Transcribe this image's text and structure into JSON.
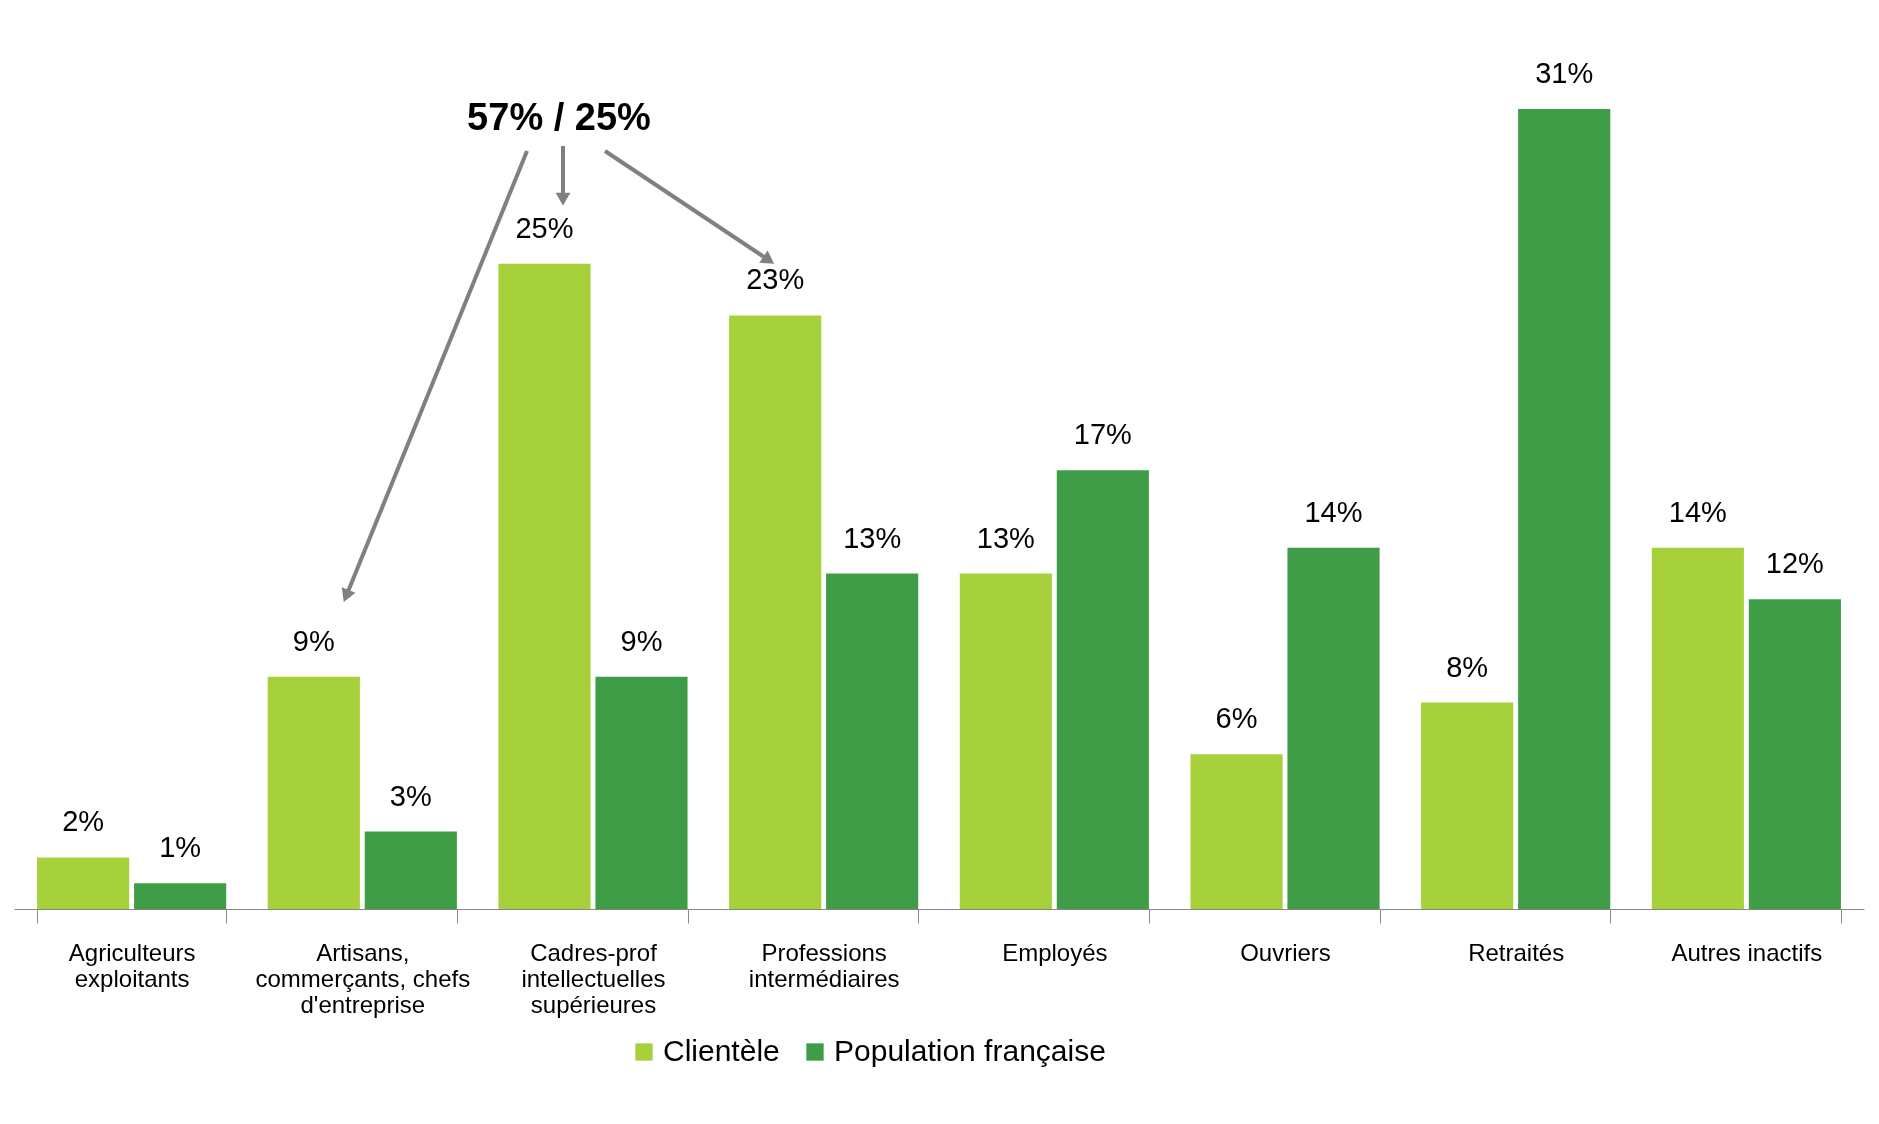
{
  "chart_data": {
    "type": "bar",
    "categories": [
      "Agriculteurs exploitants",
      "Artisans, commerçants, chefs d'entreprise",
      "Cadres-prof intellectuelles supérieures",
      "Professions intermédiaires",
      "Employés",
      "Ouvriers",
      "Retraités",
      "Autres inactifs"
    ],
    "series": [
      {
        "name": "Clientèle",
        "color": "#a6d13a",
        "values": [
          2,
          9,
          25,
          23,
          13,
          6,
          8,
          14
        ],
        "value_labels": [
          "2%",
          "9%",
          "25%",
          "23%",
          "13%",
          "6%",
          "8%",
          "14%"
        ]
      },
      {
        "name": "Population française",
        "color": "#3f9d47",
        "values": [
          1,
          3,
          9,
          13,
          17,
          14,
          31,
          12
        ],
        "value_labels": [
          "1%",
          "3%",
          "9%",
          "13%",
          "17%",
          "14%",
          "31%",
          "12%"
        ]
      }
    ],
    "annotations": [
      "57% / 25%"
    ],
    "legend": "bottom",
    "grid": false
  }
}
